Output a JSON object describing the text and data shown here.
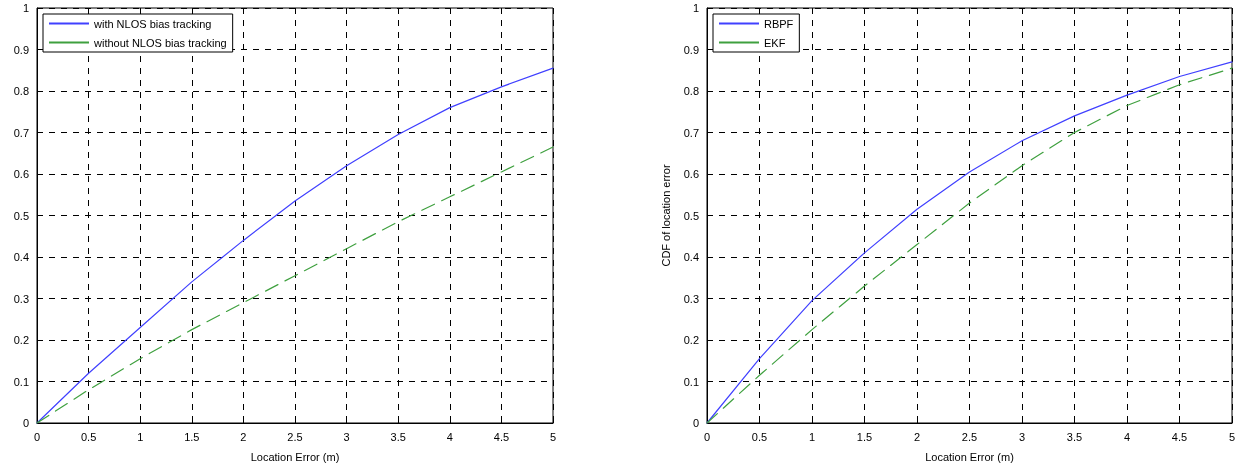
{
  "chart_data": [
    {
      "type": "line",
      "xlabel": "Location Error (m)",
      "x": [
        0,
        0.5,
        1,
        1.5,
        2,
        2.5,
        3,
        3.5,
        4,
        4.5,
        5
      ],
      "xlim": [
        0,
        5
      ],
      "xticks": [
        0,
        0.5,
        1,
        1.5,
        2,
        2.5,
        3,
        3.5,
        4,
        4.5,
        5
      ],
      "ylim": [
        0,
        1
      ],
      "yticks": [
        0,
        0.1,
        0.2,
        0.3,
        0.4,
        0.5,
        0.6,
        0.7,
        0.8,
        0.9,
        1
      ],
      "grid": true,
      "legend": "top left",
      "marker": "none",
      "series": [
        {
          "name": "with NLOS bias tracking",
          "color": "#4040ff",
          "line_style": "solid",
          "values": [
            0,
            0.12,
            0.23,
            0.34,
            0.44,
            0.535,
            0.62,
            0.695,
            0.76,
            0.81,
            0.855
          ]
        },
        {
          "name": "without NLOS bias tracking",
          "color": "#3fa03f",
          "line_style": "dashed",
          "values": [
            0,
            0.08,
            0.155,
            0.225,
            0.29,
            0.355,
            0.42,
            0.485,
            0.545,
            0.605,
            0.665
          ]
        }
      ]
    },
    {
      "type": "line",
      "xlabel": "Location Error (m)",
      "ylabel": "CDF of location error",
      "x": [
        0,
        0.5,
        1,
        1.5,
        2,
        2.5,
        3,
        3.5,
        4,
        4.5,
        5
      ],
      "xlim": [
        0,
        5
      ],
      "xticks": [
        0,
        0.5,
        1,
        1.5,
        2,
        2.5,
        3,
        3.5,
        4,
        4.5,
        5
      ],
      "ylim": [
        0,
        1
      ],
      "yticks": [
        0,
        0.1,
        0.2,
        0.3,
        0.4,
        0.5,
        0.6,
        0.7,
        0.8,
        0.9,
        1
      ],
      "grid": true,
      "legend": "top left",
      "marker": "none",
      "series": [
        {
          "name": "RBPF",
          "color": "#4040ff",
          "line_style": "solid",
          "values": [
            0,
            0.155,
            0.295,
            0.41,
            0.515,
            0.605,
            0.68,
            0.74,
            0.79,
            0.835,
            0.87
          ]
        },
        {
          "name": "EKF",
          "color": "#3fa03f",
          "line_style": "dashed",
          "values": [
            0,
            0.115,
            0.225,
            0.33,
            0.43,
            0.53,
            0.62,
            0.7,
            0.765,
            0.815,
            0.855
          ]
        }
      ]
    }
  ]
}
